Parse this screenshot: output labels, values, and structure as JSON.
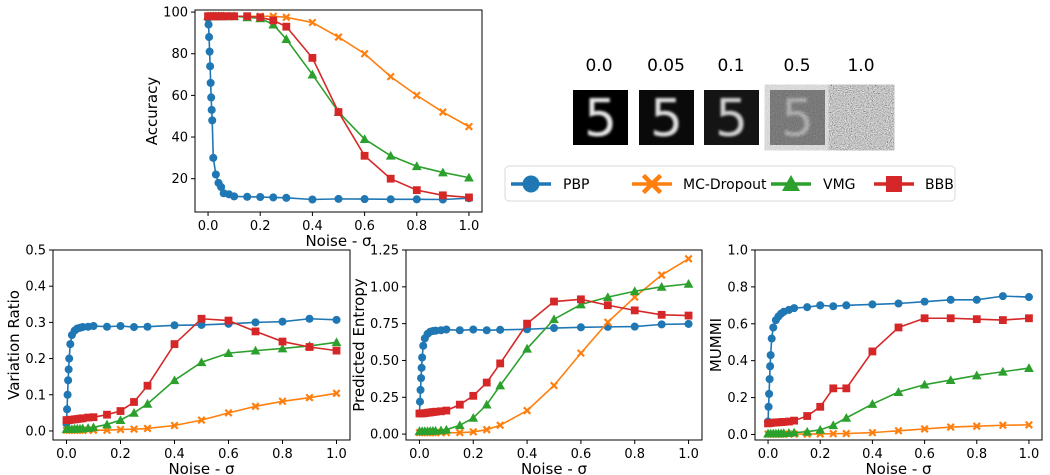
{
  "colors": {
    "PBP": "#1f77b4",
    "MC-Dropout": "#ff7f0e",
    "VMG": "#2ca02c",
    "BBB": "#d62728"
  },
  "legend": {
    "entries": [
      {
        "label": "PBP",
        "marker": "circle"
      },
      {
        "label": "MC-Dropout",
        "marker": "x"
      },
      {
        "label": "VMG",
        "marker": "triangle"
      },
      {
        "label": "BBB",
        "marker": "square"
      }
    ]
  },
  "noise_samples": {
    "labels": [
      "0.0",
      "0.05",
      "0.1",
      "0.5",
      "1.0"
    ],
    "digit": "5"
  },
  "chart_data": [
    {
      "id": "accuracy",
      "type": "line",
      "xlabel": "Noise - σ",
      "ylabel": "Accuracy",
      "xlim": [
        -0.05,
        1.05
      ],
      "ylim": [
        4,
        101
      ],
      "xticks": [
        0.0,
        0.2,
        0.4,
        0.6,
        0.8,
        1.0
      ],
      "xtick_labels": [
        "0.0",
        "0.2",
        "0.4",
        "0.6",
        "0.8",
        "1.0"
      ],
      "yticks": [
        20,
        40,
        60,
        80,
        100
      ],
      "ytick_labels": [
        "20",
        "40",
        "60",
        "80",
        "100"
      ],
      "series": [
        {
          "name": "PBP",
          "marker": "circle",
          "x": [
            0.0,
            0.002,
            0.004,
            0.006,
            0.008,
            0.01,
            0.012,
            0.014,
            0.016,
            0.02,
            0.03,
            0.04,
            0.05,
            0.06,
            0.08,
            0.1,
            0.15,
            0.2,
            0.25,
            0.3,
            0.4,
            0.5,
            0.6,
            0.7,
            0.8,
            0.9,
            1.0
          ],
          "y": [
            97,
            94,
            88,
            81,
            74,
            66,
            59,
            53,
            48,
            30,
            22,
            18,
            16,
            13,
            12.5,
            11.5,
            11.3,
            11.2,
            11,
            10.8,
            10,
            10.3,
            10.2,
            10.1,
            10.1,
            10,
            10.6
          ]
        },
        {
          "name": "MC-Dropout",
          "marker": "x",
          "x": [
            0.0,
            0.01,
            0.02,
            0.03,
            0.04,
            0.05,
            0.06,
            0.08,
            0.1,
            0.15,
            0.2,
            0.25,
            0.3,
            0.4,
            0.5,
            0.6,
            0.7,
            0.8,
            0.9,
            1.0
          ],
          "y": [
            98,
            98,
            98,
            98,
            98,
            98,
            98,
            98,
            98,
            98,
            98,
            98,
            97.5,
            95,
            88,
            80,
            69,
            60,
            52,
            45
          ]
        },
        {
          "name": "VMG",
          "marker": "triangle",
          "x": [
            0.0,
            0.01,
            0.02,
            0.03,
            0.04,
            0.05,
            0.06,
            0.08,
            0.1,
            0.15,
            0.2,
            0.25,
            0.3,
            0.4,
            0.5,
            0.6,
            0.7,
            0.8,
            0.9,
            1.0
          ],
          "y": [
            98,
            98,
            98,
            98,
            98,
            98,
            98,
            98,
            98,
            97.5,
            97,
            94,
            87,
            70,
            52,
            39,
            31,
            26,
            23,
            20.5
          ]
        },
        {
          "name": "BBB",
          "marker": "square",
          "x": [
            0.0,
            0.01,
            0.02,
            0.03,
            0.04,
            0.05,
            0.06,
            0.08,
            0.1,
            0.15,
            0.2,
            0.25,
            0.3,
            0.4,
            0.5,
            0.6,
            0.7,
            0.8,
            0.9,
            1.0
          ],
          "y": [
            98,
            98,
            98,
            98,
            98,
            98,
            98,
            98,
            98,
            98,
            97.5,
            96,
            93,
            78,
            52,
            31,
            20,
            14.5,
            12,
            11
          ]
        }
      ]
    },
    {
      "id": "variation_ratio",
      "type": "line",
      "xlabel": "Noise - σ",
      "ylabel": "Variation Ratio",
      "xlim": [
        -0.05,
        1.05
      ],
      "ylim": [
        -0.025,
        0.5
      ],
      "xticks": [
        0.0,
        0.2,
        0.4,
        0.6,
        0.8,
        1.0
      ],
      "xtick_labels": [
        "0.0",
        "0.2",
        "0.4",
        "0.6",
        "0.8",
        "1.0"
      ],
      "yticks": [
        0.0,
        0.1,
        0.2,
        0.3,
        0.4,
        0.5
      ],
      "ytick_labels": [
        "0.0",
        "0.1",
        "0.2",
        "0.3",
        "0.4",
        "0.5"
      ],
      "series": [
        {
          "name": "PBP",
          "marker": "circle",
          "x": [
            0.0,
            0.002,
            0.004,
            0.006,
            0.008,
            0.01,
            0.014,
            0.02,
            0.03,
            0.04,
            0.05,
            0.06,
            0.08,
            0.1,
            0.15,
            0.2,
            0.25,
            0.3,
            0.4,
            0.5,
            0.6,
            0.7,
            0.8,
            0.9,
            1.0
          ],
          "y": [
            0.02,
            0.06,
            0.1,
            0.14,
            0.17,
            0.2,
            0.24,
            0.265,
            0.277,
            0.283,
            0.285,
            0.287,
            0.288,
            0.29,
            0.288,
            0.29,
            0.287,
            0.288,
            0.292,
            0.293,
            0.296,
            0.3,
            0.302,
            0.31,
            0.307
          ]
        },
        {
          "name": "MC-Dropout",
          "marker": "x",
          "x": [
            0.0,
            0.01,
            0.02,
            0.03,
            0.04,
            0.05,
            0.06,
            0.08,
            0.1,
            0.15,
            0.2,
            0.25,
            0.3,
            0.4,
            0.5,
            0.6,
            0.7,
            0.8,
            0.9,
            1.0
          ],
          "y": [
            0.002,
            0.002,
            0.002,
            0.002,
            0.002,
            0.002,
            0.002,
            0.002,
            0.002,
            0.002,
            0.004,
            0.005,
            0.007,
            0.015,
            0.03,
            0.05,
            0.068,
            0.082,
            0.092,
            0.104
          ]
        },
        {
          "name": "VMG",
          "marker": "triangle",
          "x": [
            0.0,
            0.01,
            0.02,
            0.03,
            0.04,
            0.05,
            0.06,
            0.08,
            0.1,
            0.15,
            0.2,
            0.25,
            0.3,
            0.4,
            0.5,
            0.6,
            0.7,
            0.8,
            0.9,
            1.0
          ],
          "y": [
            0.005,
            0.005,
            0.005,
            0.006,
            0.006,
            0.006,
            0.007,
            0.008,
            0.01,
            0.018,
            0.03,
            0.05,
            0.075,
            0.14,
            0.19,
            0.215,
            0.222,
            0.228,
            0.235,
            0.245
          ]
        },
        {
          "name": "BBB",
          "marker": "square",
          "x": [
            0.0,
            0.01,
            0.02,
            0.03,
            0.04,
            0.05,
            0.06,
            0.08,
            0.1,
            0.15,
            0.2,
            0.25,
            0.3,
            0.4,
            0.5,
            0.6,
            0.7,
            0.8,
            0.9,
            1.0
          ],
          "y": [
            0.03,
            0.03,
            0.031,
            0.032,
            0.033,
            0.034,
            0.035,
            0.037,
            0.038,
            0.045,
            0.055,
            0.08,
            0.125,
            0.24,
            0.31,
            0.305,
            0.275,
            0.247,
            0.232,
            0.222
          ]
        }
      ]
    },
    {
      "id": "predicted_entropy",
      "type": "line",
      "xlabel": "Noise - σ",
      "ylabel": "Predicted Entropy",
      "xlim": [
        -0.05,
        1.05
      ],
      "ylim": [
        -0.04,
        1.25
      ],
      "xticks": [
        0.0,
        0.2,
        0.4,
        0.6,
        0.8,
        1.0
      ],
      "xtick_labels": [
        "0.0",
        "0.2",
        "0.4",
        "0.6",
        "0.8",
        "1.0"
      ],
      "yticks": [
        0.0,
        0.25,
        0.5,
        0.75,
        1.0,
        1.25
      ],
      "ytick_labels": [
        "0.00",
        "0.25",
        "0.50",
        "0.75",
        "1.00",
        "1.25"
      ],
      "series": [
        {
          "name": "PBP",
          "marker": "circle",
          "x": [
            0.0,
            0.002,
            0.004,
            0.006,
            0.008,
            0.01,
            0.014,
            0.02,
            0.03,
            0.04,
            0.05,
            0.06,
            0.08,
            0.1,
            0.15,
            0.2,
            0.25,
            0.3,
            0.4,
            0.5,
            0.6,
            0.7,
            0.8,
            0.9,
            1.0
          ],
          "y": [
            0.14,
            0.22,
            0.3,
            0.38,
            0.45,
            0.52,
            0.6,
            0.65,
            0.68,
            0.695,
            0.7,
            0.702,
            0.705,
            0.71,
            0.705,
            0.71,
            0.705,
            0.708,
            0.712,
            0.72,
            0.725,
            0.728,
            0.73,
            0.745,
            0.748
          ]
        },
        {
          "name": "MC-Dropout",
          "marker": "x",
          "x": [
            0.0,
            0.01,
            0.02,
            0.03,
            0.04,
            0.05,
            0.06,
            0.08,
            0.1,
            0.15,
            0.2,
            0.25,
            0.3,
            0.4,
            0.5,
            0.6,
            0.7,
            0.8,
            0.9,
            1.0
          ],
          "y": [
            0.01,
            0.01,
            0.01,
            0.01,
            0.01,
            0.01,
            0.01,
            0.01,
            0.01,
            0.01,
            0.015,
            0.03,
            0.06,
            0.16,
            0.33,
            0.55,
            0.76,
            0.93,
            1.08,
            1.19
          ]
        },
        {
          "name": "VMG",
          "marker": "triangle",
          "x": [
            0.0,
            0.01,
            0.02,
            0.03,
            0.04,
            0.05,
            0.06,
            0.08,
            0.1,
            0.15,
            0.2,
            0.25,
            0.3,
            0.4,
            0.5,
            0.6,
            0.7,
            0.8,
            0.9,
            1.0
          ],
          "y": [
            0.02,
            0.02,
            0.02,
            0.02,
            0.021,
            0.022,
            0.023,
            0.025,
            0.03,
            0.06,
            0.11,
            0.2,
            0.33,
            0.58,
            0.78,
            0.88,
            0.93,
            0.97,
            1.0,
            1.02
          ]
        },
        {
          "name": "BBB",
          "marker": "square",
          "x": [
            0.0,
            0.01,
            0.02,
            0.03,
            0.04,
            0.05,
            0.06,
            0.08,
            0.1,
            0.15,
            0.2,
            0.25,
            0.3,
            0.4,
            0.5,
            0.6,
            0.7,
            0.8,
            0.9,
            1.0
          ],
          "y": [
            0.14,
            0.14,
            0.142,
            0.145,
            0.147,
            0.15,
            0.152,
            0.155,
            0.16,
            0.2,
            0.26,
            0.35,
            0.48,
            0.75,
            0.9,
            0.915,
            0.875,
            0.84,
            0.81,
            0.805
          ]
        }
      ]
    },
    {
      "id": "mummi",
      "type": "line",
      "xlabel": "Noise - σ",
      "ylabel": "MUMMI",
      "xlim": [
        -0.05,
        1.05
      ],
      "ylim": [
        -0.03,
        1.0
      ],
      "xticks": [
        0.0,
        0.2,
        0.4,
        0.6,
        0.8,
        1.0
      ],
      "xtick_labels": [
        "0.0",
        "0.2",
        "0.4",
        "0.6",
        "0.8",
        "1.0"
      ],
      "yticks": [
        0.0,
        0.2,
        0.4,
        0.6,
        0.8,
        1.0
      ],
      "ytick_labels": [
        "0.0",
        "0.2",
        "0.4",
        "0.6",
        "0.8",
        "1.0"
      ],
      "series": [
        {
          "name": "PBP",
          "marker": "circle",
          "x": [
            0.0,
            0.002,
            0.004,
            0.006,
            0.008,
            0.01,
            0.014,
            0.02,
            0.03,
            0.04,
            0.05,
            0.06,
            0.08,
            0.1,
            0.15,
            0.2,
            0.25,
            0.3,
            0.4,
            0.5,
            0.6,
            0.7,
            0.8,
            0.9,
            1.0
          ],
          "y": [
            0.07,
            0.15,
            0.22,
            0.3,
            0.37,
            0.43,
            0.52,
            0.58,
            0.62,
            0.64,
            0.655,
            0.665,
            0.675,
            0.685,
            0.69,
            0.7,
            0.695,
            0.7,
            0.705,
            0.71,
            0.72,
            0.73,
            0.73,
            0.75,
            0.745
          ]
        },
        {
          "name": "MC-Dropout",
          "marker": "x",
          "x": [
            0.0,
            0.01,
            0.02,
            0.03,
            0.04,
            0.05,
            0.06,
            0.08,
            0.1,
            0.15,
            0.2,
            0.25,
            0.3,
            0.4,
            0.5,
            0.6,
            0.7,
            0.8,
            0.9,
            1.0
          ],
          "y": [
            0.002,
            0.002,
            0.002,
            0.002,
            0.002,
            0.002,
            0.002,
            0.002,
            0.002,
            0.002,
            0.003,
            0.004,
            0.005,
            0.01,
            0.02,
            0.03,
            0.04,
            0.045,
            0.05,
            0.052
          ]
        },
        {
          "name": "VMG",
          "marker": "triangle",
          "x": [
            0.0,
            0.01,
            0.02,
            0.03,
            0.04,
            0.05,
            0.06,
            0.08,
            0.1,
            0.15,
            0.2,
            0.25,
            0.3,
            0.4,
            0.5,
            0.6,
            0.7,
            0.8,
            0.9,
            1.0
          ],
          "y": [
            0.005,
            0.005,
            0.005,
            0.005,
            0.006,
            0.006,
            0.007,
            0.008,
            0.01,
            0.015,
            0.025,
            0.05,
            0.09,
            0.165,
            0.23,
            0.27,
            0.295,
            0.32,
            0.34,
            0.36
          ]
        },
        {
          "name": "BBB",
          "marker": "square",
          "x": [
            0.0,
            0.01,
            0.02,
            0.03,
            0.04,
            0.05,
            0.06,
            0.08,
            0.1,
            0.15,
            0.2,
            0.25,
            0.3,
            0.4,
            0.5,
            0.6,
            0.7,
            0.8,
            0.9,
            1.0
          ],
          "y": [
            0.06,
            0.062,
            0.064,
            0.065,
            0.066,
            0.067,
            0.068,
            0.07,
            0.075,
            0.1,
            0.15,
            0.25,
            0.25,
            0.45,
            0.58,
            0.63,
            0.63,
            0.625,
            0.62,
            0.63
          ]
        }
      ]
    }
  ]
}
